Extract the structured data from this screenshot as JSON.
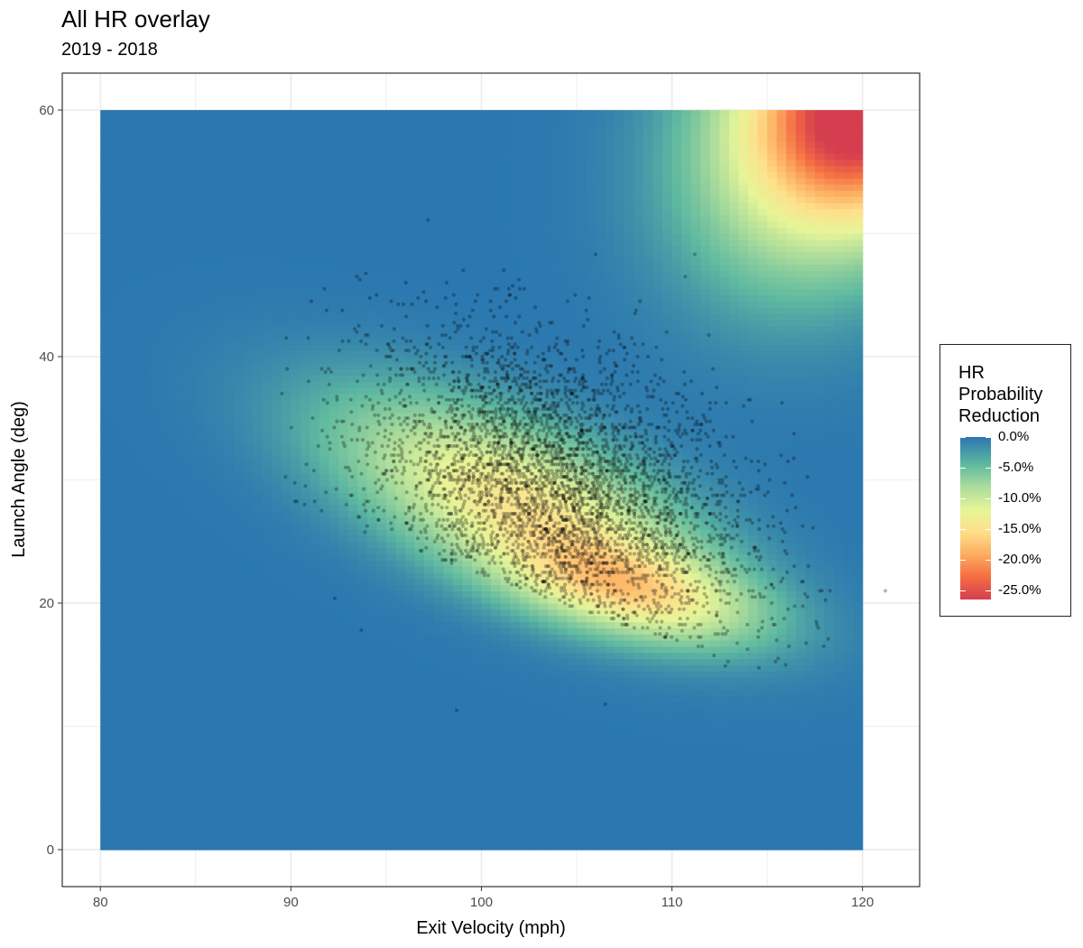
{
  "chart_data": {
    "type": "heatmap",
    "title": "All HR overlay",
    "subtitle": "2019 - 2018",
    "xlabel": "Exit Velocity (mph)",
    "ylabel": "Launch Angle (deg)",
    "xlim": [
      78,
      123
    ],
    "ylim": [
      -3,
      63
    ],
    "heatmap_extent": {
      "x": [
        80,
        120
      ],
      "y": [
        0,
        60
      ]
    },
    "x_ticks": [
      80,
      90,
      100,
      110,
      120
    ],
    "x_tick_labels": [
      "80",
      "90",
      "100",
      "110",
      "120"
    ],
    "y_ticks": [
      0,
      20,
      40,
      60
    ],
    "y_tick_labels": [
      "0",
      "20",
      "40",
      "60"
    ],
    "grid": true,
    "background_level": 0.0,
    "reduction_regions": [
      {
        "x_center": 102,
        "y_center": 28,
        "x_spread": 6.5,
        "y_spread": 4.5,
        "peak_reduction": -0.14,
        "tilt": -0.55
      },
      {
        "x_center": 108,
        "y_center": 21,
        "x_spread": 4.5,
        "y_spread": 2.5,
        "peak_reduction": -0.11,
        "tilt": -0.3
      },
      {
        "x_center": 120,
        "y_center": 60,
        "x_spread": 4.0,
        "y_spread": 6.0,
        "peak_reduction": -0.26,
        "tilt": 0.0
      },
      {
        "x_center": 116,
        "y_center": 54,
        "x_spread": 4.5,
        "y_spread": 7.5,
        "peak_reduction": -0.07,
        "tilt": 0.0
      }
    ],
    "scatter": {
      "description_series": "HR batted balls",
      "cluster_center": [
        104,
        29
      ],
      "cluster_spread": [
        5.0,
        6.0
      ],
      "approx_count": 4500,
      "outliers": [
        [
          97.2,
          51.1
        ],
        [
          106,
          48.3
        ],
        [
          111.2,
          48.3
        ],
        [
          121.2,
          21
        ],
        [
          106.5,
          11.8
        ],
        [
          98.7,
          11.3
        ],
        [
          92.3,
          20.4
        ],
        [
          89.8,
          39
        ],
        [
          93.7,
          17.8
        ],
        [
          117.4,
          26.1
        ],
        [
          118.2,
          17.1
        ],
        [
          112.8,
          14.9
        ],
        [
          110.7,
          46.5
        ]
      ]
    },
    "legend": {
      "title_lines": [
        "HR",
        "Probability",
        "Reduction"
      ],
      "placement": "right",
      "labels": [
        "0.0%",
        "-5.0%",
        "-10.0%",
        "-15.0%",
        "-20.0%",
        "-25.0%"
      ],
      "values": [
        0.0,
        -0.05,
        -0.1,
        -0.15,
        -0.2,
        -0.25
      ],
      "range": [
        0.0,
        -0.265
      ]
    },
    "colors": {
      "scale": [
        "#2b77b0",
        "#5fb9a0",
        "#a8db9b",
        "#e6f598",
        "#fee08b",
        "#fdae61",
        "#f46d43",
        "#d53e4f"
      ],
      "points": "#000000",
      "panel_border": "#333333",
      "grid": "#ebebeb"
    }
  }
}
